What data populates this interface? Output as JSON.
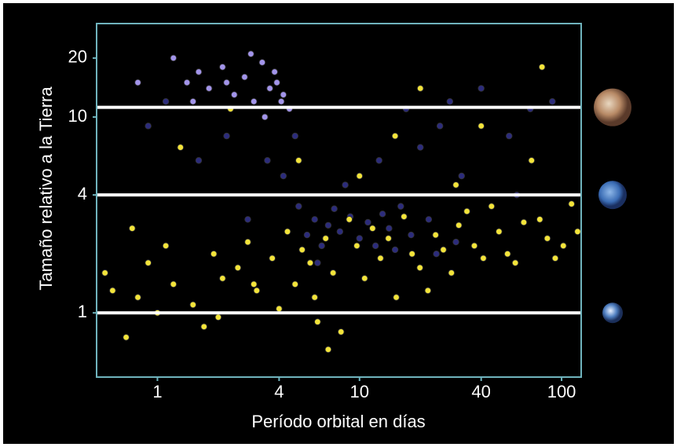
{
  "chart_data": {
    "type": "scatter",
    "x_label": "Período orbital en días",
    "y_label": "Tamaño relativo a la Tierra",
    "log_x": true,
    "log_y": true,
    "xlim": [
      0.5,
      125
    ],
    "ylim": [
      0.47,
      30
    ],
    "xticks": [
      1,
      4,
      10,
      40,
      100
    ],
    "yticks": [
      1,
      4,
      10,
      20
    ],
    "reference_lines": [
      1,
      4,
      11.2
    ],
    "series": [
      {
        "color": "#2c2c7c",
        "x": [
          0.9,
          1.1,
          1.6,
          2.2,
          2.8,
          3.5,
          4.2,
          5,
          5.5,
          6,
          6.5,
          7,
          7.5,
          8,
          9,
          10,
          11,
          12,
          13,
          14,
          15,
          16,
          18,
          20,
          22,
          25,
          28,
          32,
          40,
          55,
          70,
          90,
          6.2,
          8.5,
          12.5,
          17,
          24,
          4.8,
          30,
          60
        ],
        "values": [
          9,
          12,
          6,
          8,
          3,
          6,
          5,
          3.5,
          2.5,
          3,
          2.2,
          2.8,
          3.4,
          2.6,
          3.1,
          2.4,
          2.9,
          2.2,
          3.2,
          2.7,
          2.1,
          3.5,
          2.5,
          7,
          3,
          9,
          12,
          5,
          14,
          8,
          11,
          12,
          1.8,
          4.5,
          6,
          11,
          2,
          8,
          2.3,
          4
        ]
      },
      {
        "color": "#f3e43a",
        "x": [
          0.55,
          0.6,
          0.7,
          0.8,
          0.9,
          1.0,
          1.1,
          1.2,
          1.3,
          1.5,
          1.7,
          1.9,
          2.1,
          2.3,
          2.5,
          2.8,
          3.1,
          3.4,
          3.7,
          4.0,
          4.4,
          4.8,
          5.2,
          5.7,
          6.2,
          6.8,
          7.4,
          8.1,
          8.9,
          9.7,
          10.6,
          11.6,
          12.7,
          13.9,
          15.2,
          16.6,
          18.2,
          19.9,
          21.8,
          23.8,
          26,
          28.5,
          31,
          34,
          37,
          41,
          45,
          49,
          54,
          59,
          65,
          71,
          78,
          85,
          93,
          102,
          112,
          120,
          3.0,
          6.0,
          10,
          20,
          40,
          80,
          2.0,
          5.0,
          15,
          30,
          7,
          0.75
        ],
        "values": [
          1.6,
          1.3,
          0.75,
          1.2,
          1.8,
          1.0,
          2.2,
          1.4,
          7,
          1.1,
          0.85,
          2.0,
          1.5,
          11,
          1.7,
          2.3,
          1.3,
          10,
          1.9,
          1.05,
          2.6,
          1.4,
          2.1,
          1.8,
          0.9,
          2.4,
          1.6,
          0.8,
          3,
          2.2,
          1.5,
          2.7,
          1.9,
          2.4,
          1.2,
          3.1,
          2,
          1.7,
          1.3,
          2.5,
          2.1,
          1.6,
          2.8,
          3.3,
          2.2,
          1.9,
          3.5,
          2.6,
          2.0,
          1.8,
          2.9,
          6,
          3,
          2.4,
          1.9,
          2.2,
          3.6,
          2.6,
          1.4,
          1.2,
          5,
          14,
          9,
          18,
          0.95,
          6,
          8,
          4.5,
          0.65,
          2.7
        ]
      },
      {
        "color": "#a294ea",
        "x": [
          1.2,
          1.4,
          1.6,
          1.8,
          2.1,
          2.4,
          2.7,
          3.0,
          3.3,
          3.6,
          3.9,
          4.2,
          4.5,
          2.9,
          3.4,
          1.5,
          2.2,
          3.8,
          4.1,
          0.8
        ],
        "values": [
          20,
          15,
          17,
          14,
          18,
          13,
          16,
          12,
          19,
          14,
          15,
          13,
          11,
          21,
          10,
          12,
          15,
          17,
          12,
          15
        ]
      }
    ]
  }
}
